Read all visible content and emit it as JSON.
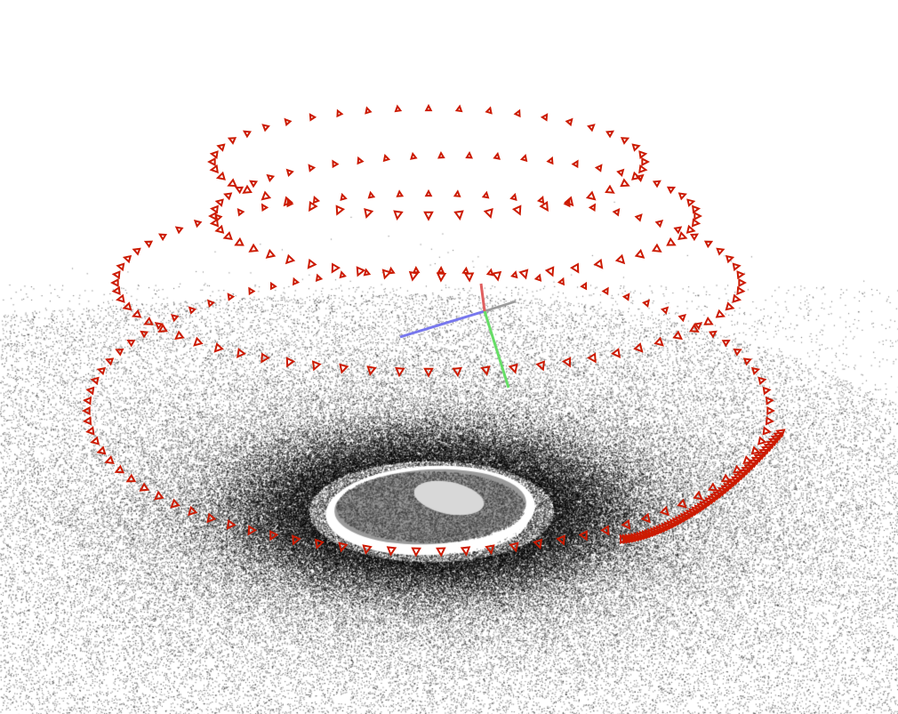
{
  "viewer": {
    "background_color": "#ffffff",
    "point_cloud_color": "#000000",
    "camera_frustum_color": "#cc1a00",
    "axes": {
      "x_color": "#e06060",
      "y_color": "#66dd66",
      "z_color": "#7777ee",
      "neutral_color": "#9a9a9a"
    }
  }
}
